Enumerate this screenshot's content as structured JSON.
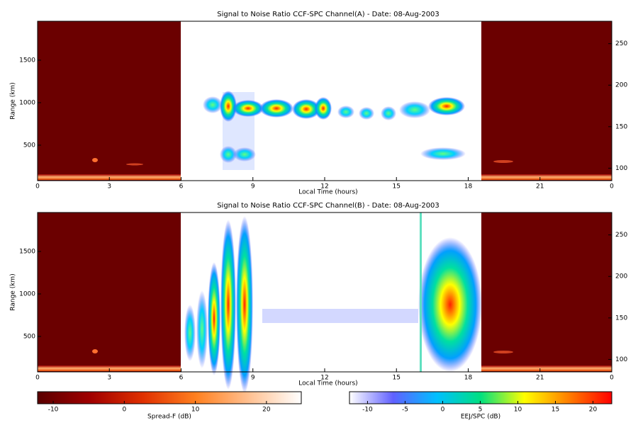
{
  "chart_data": [
    {
      "type": "heatmap",
      "title": "Signal to Noise Ratio CCF-SPC Channel(A) - Date: 08-Aug-2003",
      "xlabel": "Local Time (hours)",
      "ylabel": "Range (km)",
      "xlim": [
        0,
        24
      ],
      "xticks": [
        0,
        3,
        6,
        9,
        12,
        15,
        18,
        21,
        {
          "value": 24,
          "label": "0"
        }
      ],
      "ylim": [
        83,
        1958
      ],
      "yticks": [
        500,
        1000,
        1500
      ],
      "y2lim": [
        85,
        277
      ],
      "y2ticks": [
        100,
        150,
        200,
        250
      ]
    },
    {
      "type": "heatmap",
      "title": "Signal to Noise Ratio CCF-SPC Channel(B) - Date: 08-Aug-2003",
      "xlabel": "Local Time (hours)",
      "ylabel": "Range (km)",
      "xlim": [
        0,
        24
      ],
      "xticks": [
        0,
        3,
        6,
        9,
        12,
        15,
        18,
        21,
        {
          "value": 24,
          "label": "0"
        }
      ],
      "ylim": [
        83,
        1958
      ],
      "yticks": [
        500,
        1000,
        1500
      ],
      "y2lim": [
        85,
        277
      ],
      "y2ticks": [
        100,
        150,
        200,
        250
      ]
    },
    {
      "type": "colorbar",
      "label": "Spread-F (dB)",
      "lim": [
        -12.2,
        24.9
      ],
      "ticks": [
        -10,
        0,
        10,
        20
      ],
      "colors": [
        "#5a0000",
        "#a00000",
        "#e03000",
        "#ff8020",
        "#ffc090",
        "#ffffff"
      ]
    },
    {
      "type": "colorbar",
      "label": "EEJ/SPC (dB)",
      "lim": [
        -12.4,
        22.5
      ],
      "ticks": [
        -10,
        -5,
        0,
        5,
        10,
        15,
        20
      ],
      "colors": [
        "#ffffff",
        "#6060ff",
        "#00c0ff",
        "#00e080",
        "#ffff00",
        "#ff8000",
        "#ff0000"
      ]
    }
  ]
}
